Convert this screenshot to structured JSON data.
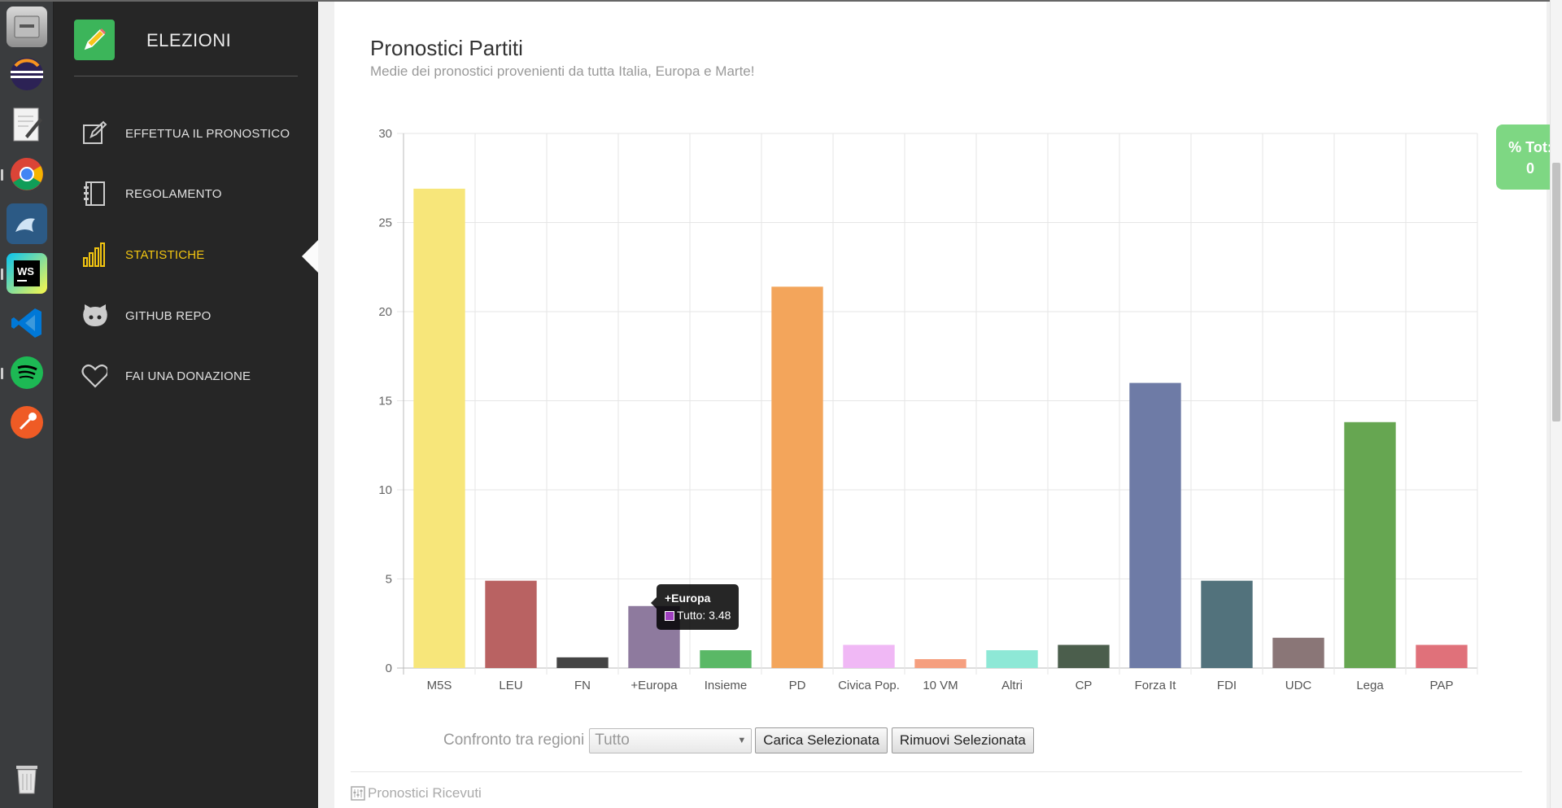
{
  "app": {
    "title": "ELEZIONI"
  },
  "sidebar": {
    "items": [
      {
        "label": "EFFETTUA IL PRONOSTICO",
        "icon": "edit-icon",
        "active": false
      },
      {
        "label": "REGOLAMENTO",
        "icon": "notebook-icon",
        "active": false
      },
      {
        "label": "STATISTICHE",
        "icon": "bar-chart-icon",
        "active": true
      },
      {
        "label": "GITHUB REPO",
        "icon": "github-icon",
        "active": false
      },
      {
        "label": "FAI UNA DONAZIONE",
        "icon": "heart-icon",
        "active": false
      }
    ]
  },
  "page": {
    "title": "Pronostici Partiti",
    "subtitle": "Medie dei pronostici provenienti da tutta Italia, Europa e Marte!"
  },
  "chart_data": {
    "type": "bar",
    "categories": [
      "M5S",
      "LEU",
      "FN",
      "+Europa",
      "Insieme",
      "PD",
      "Civica Pop.",
      "10 VM",
      "Altri",
      "CP",
      "Forza It",
      "FDI",
      "UDC",
      "Lega",
      "PAP"
    ],
    "series": [
      {
        "name": "Tutto",
        "values": [
          26.9,
          4.9,
          0.6,
          3.48,
          1.0,
          21.4,
          1.3,
          0.5,
          1.0,
          1.3,
          16.0,
          4.9,
          1.7,
          13.8,
          1.3
        ]
      }
    ],
    "colors": [
      "#f7e67a",
      "#b96262",
      "#444444",
      "#8e7a9e",
      "#5ab866",
      "#f3a55b",
      "#f0b8f5",
      "#f59f7f",
      "#8ee8d6",
      "#4b5e4c",
      "#6e7ba6",
      "#52727c",
      "#8a7677",
      "#66a651",
      "#e0717a"
    ],
    "ylim": [
      0,
      30
    ],
    "yticks": [
      0,
      5,
      10,
      15,
      20,
      25,
      30
    ],
    "grid": true,
    "tooltip": {
      "title": "+Europa",
      "text": "Tutto: 3.48"
    }
  },
  "controls": {
    "compare_label": "Confronto tra regioni",
    "region_selected": "Tutto",
    "load_button": "Carica Selezionata",
    "remove_button": "Rimuovi Selezionata"
  },
  "received": {
    "label": "Pronostici Ricevuti"
  },
  "badge": {
    "label": "% Tot:",
    "value": "0"
  },
  "dock": {
    "icons": [
      "file-manager-icon",
      "eclipse-icon",
      "text-editor-icon",
      "chrome-icon",
      "mysql-workbench-icon",
      "webstorm-icon",
      "vscode-icon",
      "spotify-icon",
      "postman-icon",
      "trash-icon"
    ]
  }
}
